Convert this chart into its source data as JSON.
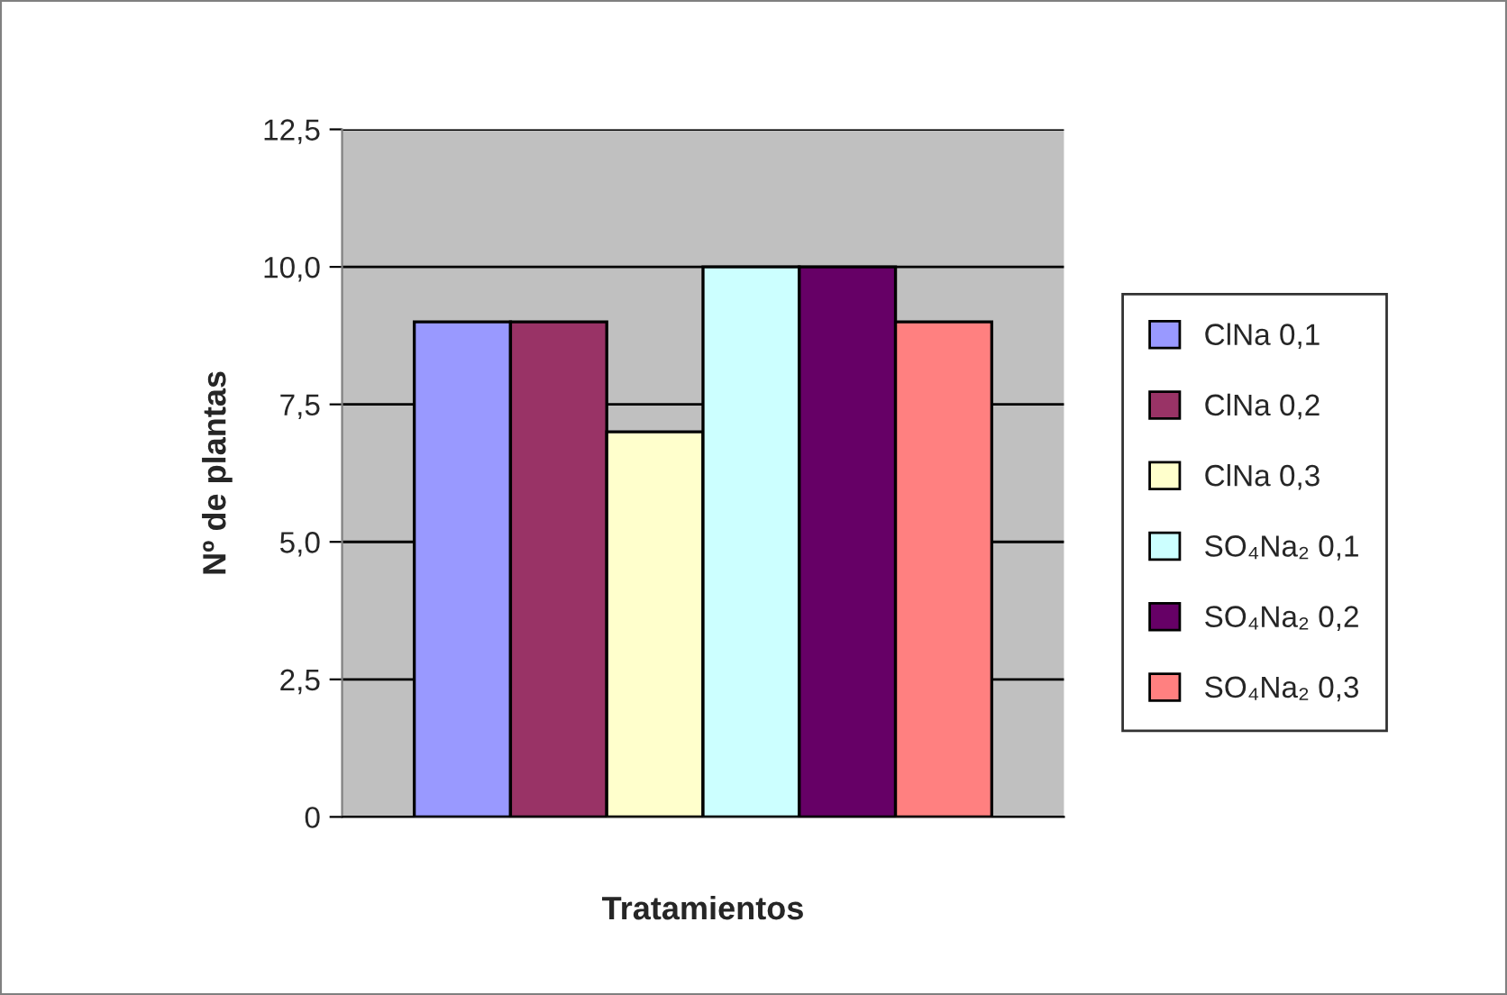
{
  "chart_data": {
    "type": "bar",
    "xlabel": "Tratamientos",
    "ylabel": "Nº de plantas",
    "categories": [
      null
    ],
    "series": [
      {
        "name": "ClNa 0,1",
        "color": "#9999ff",
        "values": [
          9
        ]
      },
      {
        "name": "ClNa 0,2",
        "color": "#993366",
        "values": [
          9
        ]
      },
      {
        "name": "ClNa 0,3",
        "color": "#ffffcc",
        "values": [
          7
        ]
      },
      {
        "name": "SO₄Na₂ 0,1",
        "color": "#ccffff",
        "values": [
          10
        ]
      },
      {
        "name": "SO₄Na₂ 0,2",
        "color": "#660066",
        "values": [
          10
        ]
      },
      {
        "name": "SO₄Na₂ 0,3",
        "color": "#ff8080",
        "values": [
          9
        ]
      }
    ],
    "ylim": [
      0,
      12.5
    ],
    "yticks": [
      0,
      {
        "value": 2.5,
        "label": "2,5"
      },
      {
        "value": 5,
        "label": "5,0"
      },
      {
        "value": 7.5,
        "label": "7,5"
      },
      {
        "value": 10,
        "label": "10,0"
      },
      {
        "value": 12.5,
        "label": "12,5"
      }
    ],
    "grid": "y",
    "legend": "right"
  }
}
